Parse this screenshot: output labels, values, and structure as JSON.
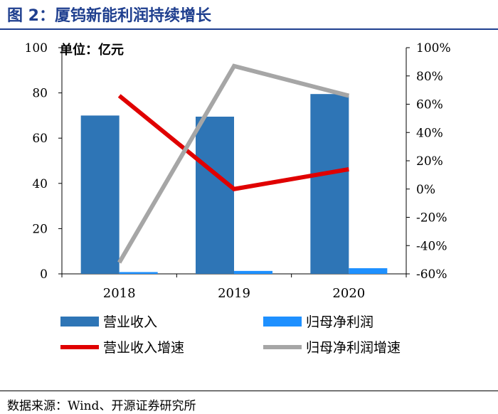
{
  "header": {
    "title": "图 2：厦钨新能利润持续增长"
  },
  "footer": {
    "source": "数据来源：Wind、开源证券研究所"
  },
  "chart_data": {
    "type": "bar",
    "unit_label": "单位：亿元",
    "categories": [
      "2018",
      "2019",
      "2020"
    ],
    "left_axis": {
      "ylim": [
        0,
        100
      ],
      "ticks": [
        "0",
        "20",
        "40",
        "60",
        "80",
        "100"
      ]
    },
    "right_axis": {
      "ylim": [
        -60,
        100
      ],
      "ticks": [
        "-60%",
        "-40%",
        "-20%",
        "0%",
        "20%",
        "40%",
        "60%",
        "80%",
        "100%"
      ]
    },
    "series": [
      {
        "name": "营业收入",
        "type": "bar",
        "axis": "left",
        "color": "#2e75b6",
        "values": [
          70,
          69.5,
          79.5
        ]
      },
      {
        "name": "归母净利润",
        "type": "bar",
        "axis": "left",
        "color": "#1e90ff",
        "values": [
          0.8,
          1.3,
          2.5
        ]
      },
      {
        "name": "营业收入增速",
        "type": "line",
        "axis": "right",
        "color": "#e00000",
        "values": [
          66,
          0,
          14
        ]
      },
      {
        "name": "归母净利润增速",
        "type": "line",
        "axis": "right",
        "color": "#a6a6a6",
        "values": [
          -52,
          87,
          66
        ]
      }
    ],
    "legend": {
      "position": "bottom"
    },
    "grid": false
  }
}
